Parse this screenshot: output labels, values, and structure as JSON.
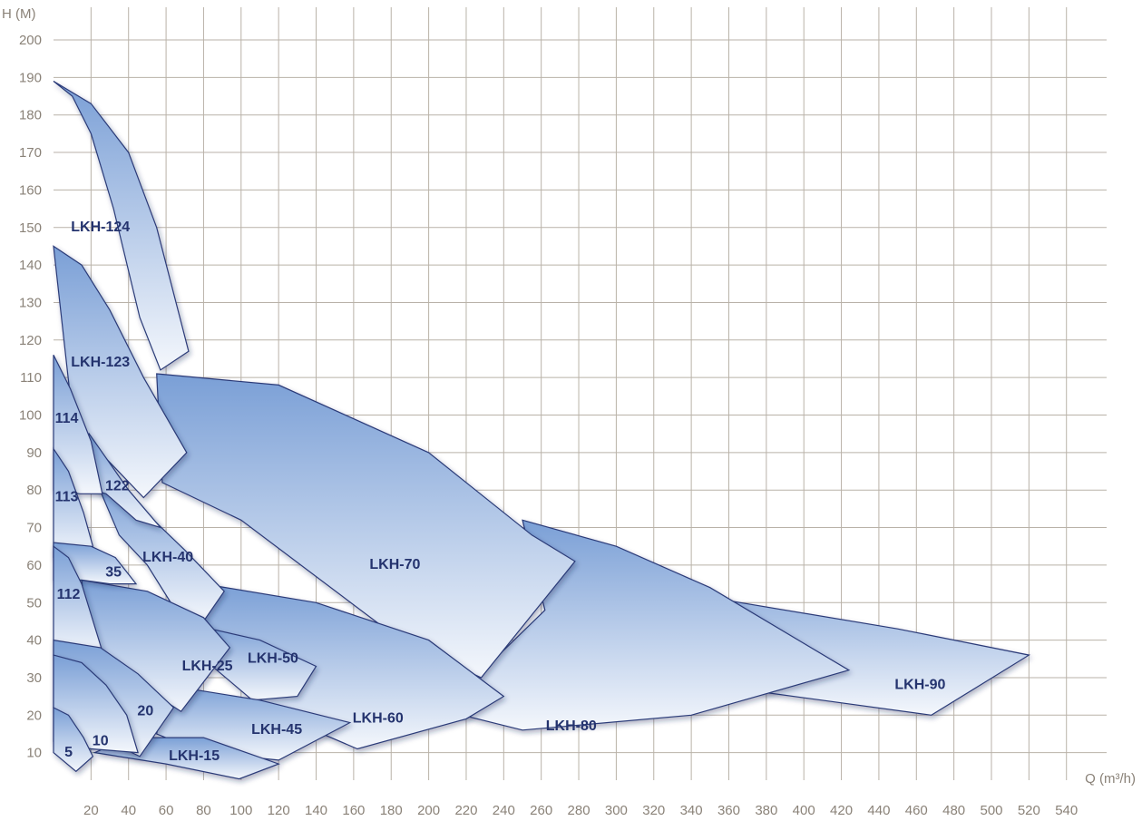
{
  "chart_data": {
    "type": "area",
    "title": "",
    "xlabel": "Q (m³/h)",
    "ylabel": "H (M)",
    "xlim": [
      0,
      560
    ],
    "ylim": [
      0,
      200
    ],
    "x_ticks": [
      20,
      40,
      60,
      80,
      100,
      120,
      140,
      160,
      180,
      200,
      220,
      240,
      260,
      280,
      300,
      320,
      340,
      360,
      380,
      400,
      420,
      440,
      460,
      480,
      500,
      520,
      540
    ],
    "y_ticks": [
      10,
      20,
      30,
      40,
      50,
      60,
      70,
      80,
      90,
      100,
      110,
      120,
      130,
      140,
      150,
      160,
      170,
      180,
      190,
      200
    ],
    "grid": true,
    "colors": {
      "fill_top": "#7a9fd6",
      "fill_bottom": "#f4f7fc",
      "outline": "#2c3a78",
      "label": "#24336e",
      "grid": "#b9b2a8",
      "tick": "#8a8278"
    },
    "series": [
      {
        "name": "LKH-90",
        "label_at": [
          462,
          28
        ],
        "points": [
          [
            254,
            62
          ],
          [
            330,
            53
          ],
          [
            450,
            43
          ],
          [
            520,
            36
          ],
          [
            468,
            20
          ],
          [
            380,
            26
          ],
          [
            300,
            36
          ]
        ]
      },
      {
        "name": "LKH-80",
        "label_at": [
          276,
          17
        ],
        "points": [
          [
            250,
            72
          ],
          [
            300,
            65
          ],
          [
            350,
            54
          ],
          [
            424,
            32
          ],
          [
            340,
            20
          ],
          [
            250,
            16
          ],
          [
            210,
            21
          ],
          [
            225,
            30
          ],
          [
            262,
            48
          ]
        ]
      },
      {
        "name": "LKH-70",
        "label_at": [
          182,
          60
        ],
        "points": [
          [
            55,
            111
          ],
          [
            120,
            108
          ],
          [
            200,
            90
          ],
          [
            255,
            68
          ],
          [
            278,
            61
          ],
          [
            228,
            30
          ],
          [
            185,
            40
          ],
          [
            100,
            72
          ],
          [
            58,
            82
          ]
        ]
      },
      {
        "name": "LKH-60",
        "label_at": [
          173,
          19
        ],
        "points": [
          [
            80,
            55
          ],
          [
            140,
            50
          ],
          [
            200,
            40
          ],
          [
            240,
            25
          ],
          [
            220,
            19
          ],
          [
            162,
            11
          ],
          [
            120,
            20
          ],
          [
            80,
            37
          ]
        ]
      },
      {
        "name": "LKH-50",
        "label_at": [
          117,
          35
        ],
        "points": [
          [
            75,
            44
          ],
          [
            110,
            40
          ],
          [
            140,
            33
          ],
          [
            130,
            25
          ],
          [
            106,
            24
          ],
          [
            80,
            35
          ]
        ]
      },
      {
        "name": "LKH-45",
        "label_at": [
          119,
          16
        ],
        "points": [
          [
            60,
            28
          ],
          [
            110,
            24
          ],
          [
            158,
            18
          ],
          [
            120,
            8
          ],
          [
            80,
            10
          ],
          [
            55,
            15
          ]
        ]
      },
      {
        "name": "LKH-15",
        "label_at": [
          75,
          9
        ],
        "points": [
          [
            22,
            10
          ],
          [
            60,
            7
          ],
          [
            99,
            3
          ],
          [
            120,
            7
          ],
          [
            80,
            14
          ],
          [
            40,
            14
          ]
        ]
      },
      {
        "name": "LKH-40",
        "label_at": [
          61,
          62
        ],
        "points": [
          [
            23,
            82
          ],
          [
            45,
            76
          ],
          [
            70,
            64
          ],
          [
            91,
            53
          ],
          [
            80,
            45
          ],
          [
            65,
            48
          ],
          [
            50,
            60
          ],
          [
            35,
            68
          ]
        ]
      },
      {
        "name": "LKH-25",
        "label_at": [
          82,
          33
        ],
        "points": [
          [
            15,
            56
          ],
          [
            50,
            53
          ],
          [
            80,
            46
          ],
          [
            94,
            38
          ],
          [
            68,
            21
          ],
          [
            40,
            30
          ],
          [
            20,
            36
          ]
        ]
      },
      {
        "name": "LKH-124",
        "label_at": [
          25,
          150
        ],
        "points": [
          [
            0,
            189
          ],
          [
            10,
            185
          ],
          [
            20,
            175
          ],
          [
            32,
            155
          ],
          [
            46,
            126
          ],
          [
            57,
            112
          ],
          [
            72,
            117
          ],
          [
            55,
            150
          ],
          [
            40,
            170
          ],
          [
            20,
            183
          ]
        ]
      },
      {
        "name": "LKH-123",
        "label_at": [
          25,
          114
        ],
        "points": [
          [
            0,
            145
          ],
          [
            15,
            140
          ],
          [
            30,
            128
          ],
          [
            48,
            110
          ],
          [
            71,
            90
          ],
          [
            48,
            78
          ],
          [
            25,
            90
          ],
          [
            10,
            100
          ]
        ]
      },
      {
        "name": "122",
        "label_at": [
          34,
          81
        ],
        "points": [
          [
            19,
            95
          ],
          [
            40,
            80
          ],
          [
            57,
            70
          ],
          [
            44,
            72
          ],
          [
            28,
            79
          ],
          [
            15,
            81
          ]
        ]
      },
      {
        "name": "114",
        "label_at": [
          7,
          99
        ],
        "points": [
          [
            0,
            116
          ],
          [
            9,
            107
          ],
          [
            20,
            93
          ],
          [
            26,
            79
          ],
          [
            14,
            79
          ],
          [
            0,
            80
          ]
        ]
      },
      {
        "name": "113",
        "label_at": [
          7,
          78
        ],
        "points": [
          [
            0,
            91
          ],
          [
            8,
            85
          ],
          [
            16,
            74
          ],
          [
            21,
            65
          ],
          [
            12,
            63
          ],
          [
            0,
            62
          ]
        ]
      },
      {
        "name": "35",
        "label_at": [
          32,
          58
        ],
        "points": [
          [
            0,
            66
          ],
          [
            20,
            65
          ],
          [
            33,
            62
          ],
          [
            44,
            55
          ],
          [
            30,
            55
          ],
          [
            15,
            56
          ],
          [
            0,
            56
          ]
        ]
      },
      {
        "name": "112",
        "label_at": [
          8,
          52
        ],
        "points": [
          [
            0,
            65
          ],
          [
            8,
            62
          ],
          [
            15,
            55
          ],
          [
            26,
            37
          ],
          [
            13,
            36
          ],
          [
            0,
            36
          ]
        ]
      },
      {
        "name": "20",
        "label_at": [
          49,
          21
        ],
        "points": [
          [
            0,
            40
          ],
          [
            25,
            38
          ],
          [
            45,
            31
          ],
          [
            64,
            22
          ],
          [
            46,
            9
          ],
          [
            25,
            14
          ],
          [
            0,
            22
          ]
        ]
      },
      {
        "name": "10",
        "label_at": [
          25,
          13
        ],
        "points": [
          [
            0,
            36
          ],
          [
            15,
            34
          ],
          [
            28,
            28
          ],
          [
            39,
            20
          ],
          [
            45,
            10
          ],
          [
            20,
            11
          ],
          [
            0,
            13
          ]
        ]
      },
      {
        "name": "5",
        "label_at": [
          8,
          10
        ],
        "points": [
          [
            0,
            22
          ],
          [
            8,
            20
          ],
          [
            16,
            14
          ],
          [
            21,
            9
          ],
          [
            12,
            5
          ],
          [
            0,
            10
          ]
        ]
      }
    ]
  }
}
